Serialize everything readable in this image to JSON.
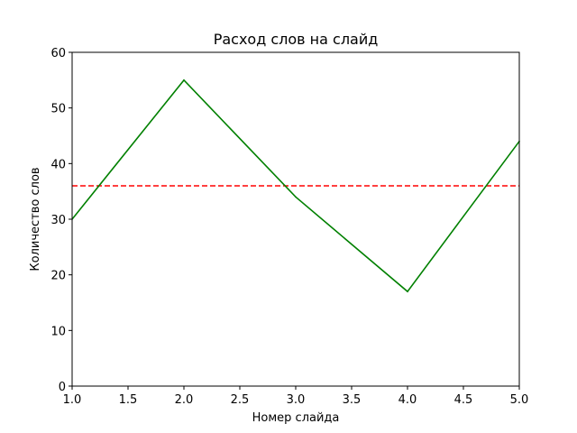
{
  "chart_data": {
    "type": "line",
    "title": "Расход слов на слайд",
    "xlabel": "Номер слайда",
    "ylabel": "Количество слов",
    "xlim": [
      1.0,
      5.0
    ],
    "ylim": [
      0,
      60
    ],
    "xticks": [
      "1.0",
      "1.5",
      "2.0",
      "2.5",
      "3.0",
      "3.5",
      "4.0",
      "4.5",
      "5.0"
    ],
    "xtick_values": [
      1.0,
      1.5,
      2.0,
      2.5,
      3.0,
      3.5,
      4.0,
      4.5,
      5.0
    ],
    "yticks": [
      "0",
      "10",
      "20",
      "30",
      "40",
      "50",
      "60"
    ],
    "ytick_values": [
      0,
      10,
      20,
      30,
      40,
      50,
      60
    ],
    "grid": false,
    "series": [
      {
        "x": [
          1,
          2,
          3,
          4,
          5
        ],
        "values": [
          30,
          55,
          34,
          17,
          44
        ],
        "color": "#008000",
        "style": "solid"
      }
    ],
    "reference_lines": [
      {
        "orientation": "horizontal",
        "value": 36,
        "color": "#ff0000",
        "style": "dashed"
      }
    ]
  }
}
